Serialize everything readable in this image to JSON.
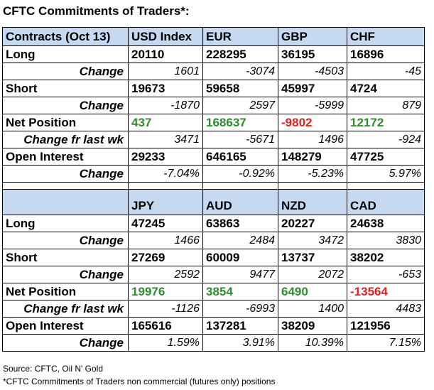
{
  "title": "CFTC Commitments of Traders*:",
  "header_label": "Contracts (Oct 13)",
  "labels": {
    "long": "Long",
    "change": "Change",
    "short": "Short",
    "net_position": "Net Position",
    "change_fr_last_wk": "Change fr last wk",
    "open_interest": "Open Interest"
  },
  "table1": {
    "currencies": [
      "USD Index",
      "EUR",
      "GBP",
      "CHF"
    ],
    "long": [
      "20110",
      "228295",
      "36195",
      "16896"
    ],
    "long_change": [
      "1601",
      "-3074",
      "-4503",
      "-45"
    ],
    "short": [
      "19673",
      "59658",
      "45997",
      "4724"
    ],
    "short_change": [
      "-1870",
      "2597",
      "-5999",
      "879"
    ],
    "net_position": [
      "437",
      "168637",
      "-9802",
      "12172"
    ],
    "net_change": [
      "3471",
      "-5671",
      "1496",
      "-924"
    ],
    "open_interest": [
      "29233",
      "646165",
      "148279",
      "47725"
    ],
    "oi_change": [
      "-7.04%",
      "-0.92%",
      "-5.23%",
      "5.97%"
    ]
  },
  "table2": {
    "currencies": [
      "JPY",
      "AUD",
      "NZD",
      "CAD"
    ],
    "long": [
      "47245",
      "63863",
      "20227",
      "24638"
    ],
    "long_change": [
      "1466",
      "2484",
      "3472",
      "3830"
    ],
    "short": [
      "27269",
      "60009",
      "13737",
      "38202"
    ],
    "short_change": [
      "2592",
      "9477",
      "2072",
      "-653"
    ],
    "net_position": [
      "19976",
      "3854",
      "6490",
      "-13564"
    ],
    "net_change": [
      "-1126",
      "-6993",
      "1400",
      "4483"
    ],
    "open_interest": [
      "165616",
      "137281",
      "38209",
      "121956"
    ],
    "oi_change": [
      "1.59%",
      "3.91%",
      "10.39%",
      "7.15%"
    ]
  },
  "colors": {
    "header_bg": "#c5d9f1",
    "positive": "#2f8b2f",
    "negative": "#e02020"
  },
  "footer": {
    "source": "Source: CFTC, Oil N' Gold",
    "note": "*CFTC Commitments of Traders non commercial (futures only) positions"
  }
}
